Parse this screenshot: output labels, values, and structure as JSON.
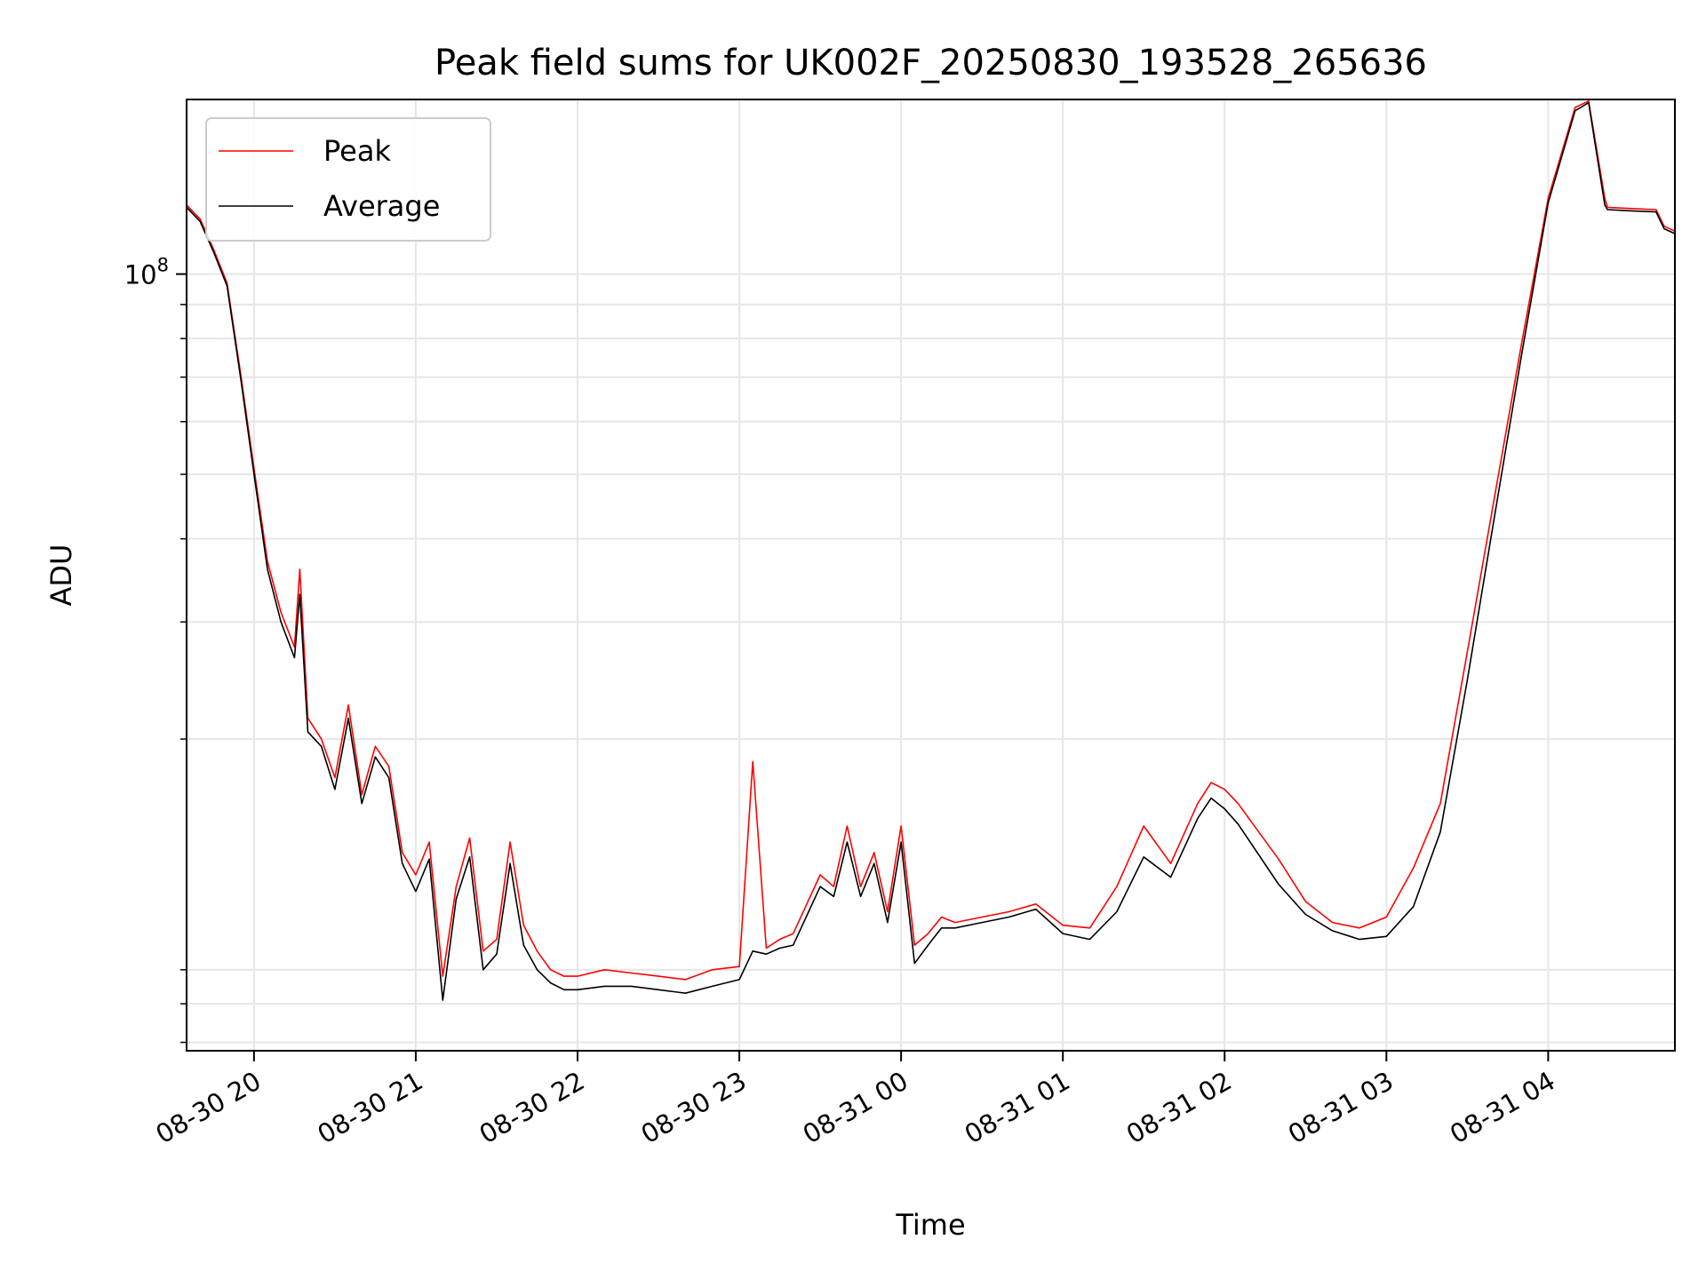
{
  "chart_data": {
    "type": "line",
    "title": "Peak field sums for UK002F_20250830_193528_265636",
    "xlabel": "Time",
    "ylabel": "ADU",
    "yscale": "log",
    "grid": true,
    "legend_position": "top-left",
    "xlim": [
      "2025-08-30 19:35",
      "2025-08-31 04:47"
    ],
    "ylim": [
      6800000,
      183000000
    ],
    "x_ticks": [
      "08-30 20",
      "08-30 21",
      "08-30 22",
      "08-30 23",
      "08-31 00",
      "08-31 01",
      "08-31 02",
      "08-31 03",
      "08-31 04"
    ],
    "y_ticks": [
      {
        "value": 100000000,
        "base": "10",
        "exponent": "8"
      }
    ],
    "series": [
      {
        "name": "Peak",
        "color": "#ff0000",
        "x": [
          "2025-08-30 19:35",
          "2025-08-30 19:40",
          "2025-08-30 19:45",
          "2025-08-30 19:50",
          "2025-08-30 19:55",
          "2025-08-30 20:00",
          "2025-08-30 20:05",
          "2025-08-30 20:10",
          "2025-08-30 20:15",
          "2025-08-30 20:17",
          "2025-08-30 20:20",
          "2025-08-30 20:25",
          "2025-08-30 20:30",
          "2025-08-30 20:35",
          "2025-08-30 20:40",
          "2025-08-30 20:45",
          "2025-08-30 20:50",
          "2025-08-30 20:55",
          "2025-08-30 21:00",
          "2025-08-30 21:05",
          "2025-08-30 21:10",
          "2025-08-30 21:15",
          "2025-08-30 21:20",
          "2025-08-30 21:25",
          "2025-08-30 21:30",
          "2025-08-30 21:35",
          "2025-08-30 21:40",
          "2025-08-30 21:45",
          "2025-08-30 21:50",
          "2025-08-30 21:55",
          "2025-08-30 22:00",
          "2025-08-30 22:10",
          "2025-08-30 22:20",
          "2025-08-30 22:30",
          "2025-08-30 22:40",
          "2025-08-30 22:50",
          "2025-08-30 23:00",
          "2025-08-30 23:05",
          "2025-08-30 23:10",
          "2025-08-30 23:15",
          "2025-08-30 23:20",
          "2025-08-30 23:30",
          "2025-08-30 23:35",
          "2025-08-30 23:40",
          "2025-08-30 23:45",
          "2025-08-30 23:50",
          "2025-08-30 23:55",
          "2025-08-31 00:00",
          "2025-08-31 00:05",
          "2025-08-31 00:10",
          "2025-08-31 00:15",
          "2025-08-31 00:20",
          "2025-08-31 00:30",
          "2025-08-31 00:40",
          "2025-08-31 00:50",
          "2025-08-31 01:00",
          "2025-08-31 01:10",
          "2025-08-31 01:20",
          "2025-08-31 01:30",
          "2025-08-31 01:40",
          "2025-08-31 01:50",
          "2025-08-31 01:55",
          "2025-08-31 02:00",
          "2025-08-31 02:05",
          "2025-08-31 02:10",
          "2025-08-31 02:20",
          "2025-08-31 02:30",
          "2025-08-31 02:40",
          "2025-08-31 02:50",
          "2025-08-31 03:00",
          "2025-08-31 03:10",
          "2025-08-31 03:20",
          "2025-08-31 03:30",
          "2025-08-31 03:40",
          "2025-08-31 03:50",
          "2025-08-31 04:00",
          "2025-08-31 04:10",
          "2025-08-31 04:15",
          "2025-08-31 04:21",
          "2025-08-31 04:22",
          "2025-08-31 04:30",
          "2025-08-31 04:40",
          "2025-08-31 04:43",
          "2025-08-31 04:47"
        ],
        "values": [
          127000000,
          121000000,
          109000000,
          97000000,
          71000000,
          51000000,
          37000000,
          31000000,
          27500000,
          36000000,
          21500000,
          20000000,
          17500000,
          22500000,
          16500000,
          19500000,
          18200000,
          13500000,
          12500000,
          14000000,
          8800000,
          12000000,
          14200000,
          9600000,
          10000000,
          14000000,
          10500000,
          9600000,
          9000000,
          8800000,
          8800000,
          9000000,
          8900000,
          8800000,
          8700000,
          9000000,
          9100000,
          18500000,
          9700000,
          10000000,
          10200000,
          12500000,
          12000000,
          14800000,
          12000000,
          13500000,
          11000000,
          14800000,
          9800000,
          10200000,
          10800000,
          10600000,
          10800000,
          11000000,
          11300000,
          10500000,
          10400000,
          12000000,
          14800000,
          13000000,
          16000000,
          17200000,
          16800000,
          16000000,
          15000000,
          13200000,
          11400000,
          10600000,
          10400000,
          10800000,
          12800000,
          16000000,
          27000000,
          46000000,
          78000000,
          130000000,
          178000000,
          182000000,
          130000000,
          126000000,
          125500000,
          125000000,
          118000000,
          116000000
        ]
      },
      {
        "name": "Average",
        "color": "#000000",
        "x": [
          "2025-08-30 19:35",
          "2025-08-30 19:40",
          "2025-08-30 19:45",
          "2025-08-30 19:50",
          "2025-08-30 19:55",
          "2025-08-30 20:00",
          "2025-08-30 20:05",
          "2025-08-30 20:10",
          "2025-08-30 20:15",
          "2025-08-30 20:17",
          "2025-08-30 20:20",
          "2025-08-30 20:25",
          "2025-08-30 20:30",
          "2025-08-30 20:35",
          "2025-08-30 20:40",
          "2025-08-30 20:45",
          "2025-08-30 20:50",
          "2025-08-30 20:55",
          "2025-08-30 21:00",
          "2025-08-30 21:05",
          "2025-08-30 21:10",
          "2025-08-30 21:15",
          "2025-08-30 21:20",
          "2025-08-30 21:25",
          "2025-08-30 21:30",
          "2025-08-30 21:35",
          "2025-08-30 21:40",
          "2025-08-30 21:45",
          "2025-08-30 21:50",
          "2025-08-30 21:55",
          "2025-08-30 22:00",
          "2025-08-30 22:10",
          "2025-08-30 22:20",
          "2025-08-30 22:30",
          "2025-08-30 22:40",
          "2025-08-30 22:50",
          "2025-08-30 23:00",
          "2025-08-30 23:05",
          "2025-08-30 23:10",
          "2025-08-30 23:15",
          "2025-08-30 23:20",
          "2025-08-30 23:30",
          "2025-08-30 23:35",
          "2025-08-30 23:40",
          "2025-08-30 23:45",
          "2025-08-30 23:50",
          "2025-08-30 23:55",
          "2025-08-31 00:00",
          "2025-08-31 00:05",
          "2025-08-31 00:10",
          "2025-08-31 00:15",
          "2025-08-31 00:20",
          "2025-08-31 00:30",
          "2025-08-31 00:40",
          "2025-08-31 00:50",
          "2025-08-31 01:00",
          "2025-08-31 01:10",
          "2025-08-31 01:20",
          "2025-08-31 01:30",
          "2025-08-31 01:40",
          "2025-08-31 01:50",
          "2025-08-31 01:55",
          "2025-08-31 02:00",
          "2025-08-31 02:05",
          "2025-08-31 02:10",
          "2025-08-31 02:20",
          "2025-08-31 02:30",
          "2025-08-31 02:40",
          "2025-08-31 02:50",
          "2025-08-31 03:00",
          "2025-08-31 03:10",
          "2025-08-31 03:20",
          "2025-08-31 03:30",
          "2025-08-31 03:40",
          "2025-08-31 03:50",
          "2025-08-31 04:00",
          "2025-08-31 04:10",
          "2025-08-31 04:15",
          "2025-08-31 04:21",
          "2025-08-31 04:22",
          "2025-08-31 04:30",
          "2025-08-31 04:40",
          "2025-08-31 04:43",
          "2025-08-31 04:47"
        ],
        "values": [
          126000000,
          120000000,
          108000000,
          96000000,
          70000000,
          50000000,
          36000000,
          30000000,
          26500000,
          33000000,
          20500000,
          19500000,
          16800000,
          21500000,
          16000000,
          18800000,
          17500000,
          13000000,
          11800000,
          13200000,
          8100000,
          11500000,
          13300000,
          9000000,
          9500000,
          13000000,
          9800000,
          9000000,
          8600000,
          8400000,
          8400000,
          8500000,
          8500000,
          8400000,
          8300000,
          8500000,
          8700000,
          9600000,
          9500000,
          9700000,
          9800000,
          12000000,
          11600000,
          14000000,
          11600000,
          13000000,
          10600000,
          14000000,
          9200000,
          9800000,
          10400000,
          10400000,
          10600000,
          10800000,
          11100000,
          10200000,
          10000000,
          11000000,
          13300000,
          12400000,
          15200000,
          16300000,
          15700000,
          14900000,
          13900000,
          12100000,
          10900000,
          10300000,
          10000000,
          10100000,
          11200000,
          14500000,
          24500000,
          43000000,
          75000000,
          128000000,
          176000000,
          181000000,
          127000000,
          125000000,
          124500000,
          124000000,
          117000000,
          115000000
        ]
      }
    ]
  }
}
